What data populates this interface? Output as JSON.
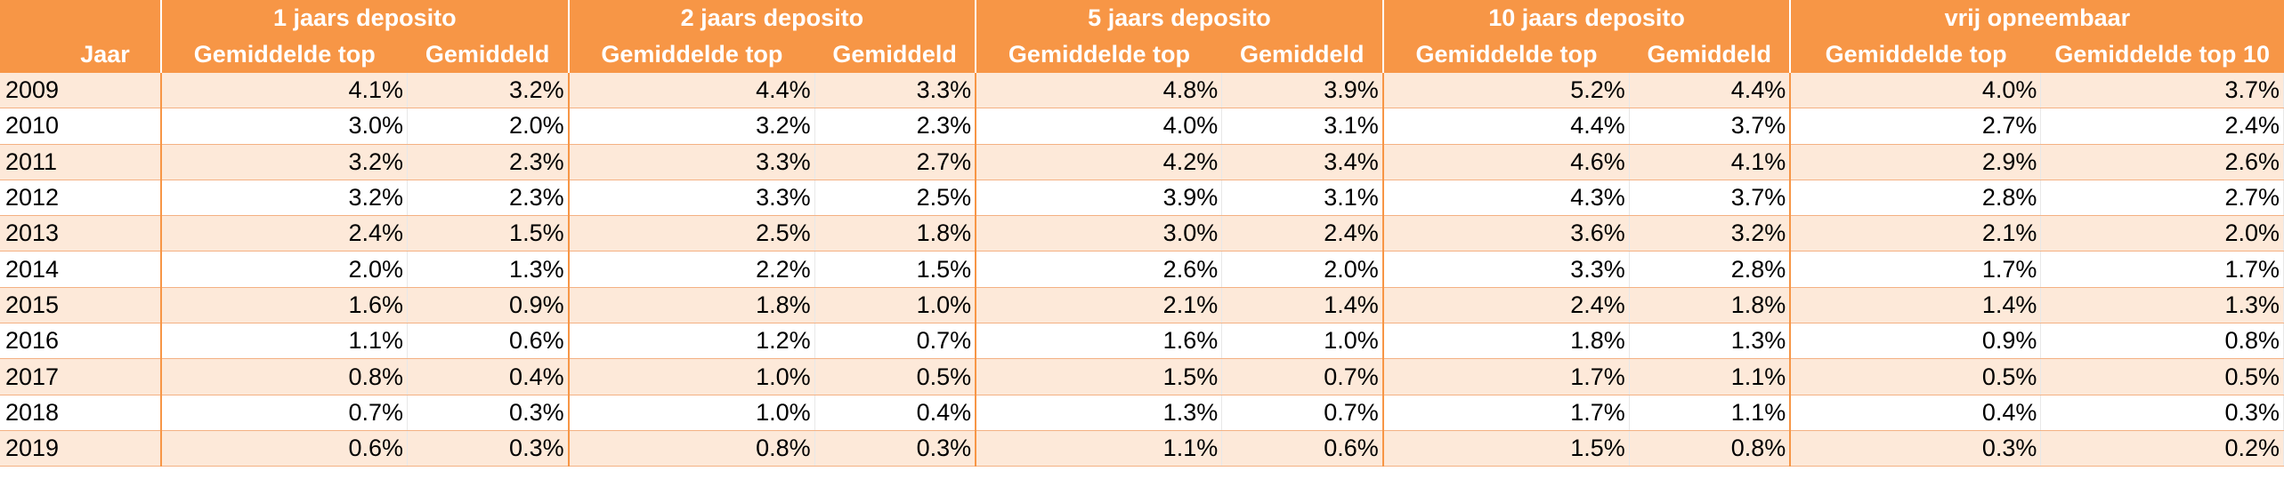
{
  "chart_data": {
    "type": "table",
    "header": {
      "year": "Jaar",
      "groups": [
        "1 jaars deposito",
        "2 jaars deposito",
        "5 jaars deposito",
        "10 jaars deposito",
        "vrij opneembaar"
      ],
      "subheaders": [
        [
          "Gemiddelde top",
          "Gemiddeld"
        ],
        [
          "Gemiddelde top",
          "Gemiddeld"
        ],
        [
          "Gemiddelde top",
          "Gemiddeld"
        ],
        [
          "Gemiddelde top",
          "Gemiddeld"
        ],
        [
          "Gemiddelde top",
          "Gemiddelde top 10"
        ]
      ]
    },
    "rows": [
      [
        "2009",
        "4.1%",
        "3.2%",
        "4.4%",
        "3.3%",
        "4.8%",
        "3.9%",
        "5.2%",
        "4.4%",
        "4.0%",
        "3.7%"
      ],
      [
        "2010",
        "3.0%",
        "2.0%",
        "3.2%",
        "2.3%",
        "4.0%",
        "3.1%",
        "4.4%",
        "3.7%",
        "2.7%",
        "2.4%"
      ],
      [
        "2011",
        "3.2%",
        "2.3%",
        "3.3%",
        "2.7%",
        "4.2%",
        "3.4%",
        "4.6%",
        "4.1%",
        "2.9%",
        "2.6%"
      ],
      [
        "2012",
        "3.2%",
        "2.3%",
        "3.3%",
        "2.5%",
        "3.9%",
        "3.1%",
        "4.3%",
        "3.7%",
        "2.8%",
        "2.7%"
      ],
      [
        "2013",
        "2.4%",
        "1.5%",
        "2.5%",
        "1.8%",
        "3.0%",
        "2.4%",
        "3.6%",
        "3.2%",
        "2.1%",
        "2.0%"
      ],
      [
        "2014",
        "2.0%",
        "1.3%",
        "2.2%",
        "1.5%",
        "2.6%",
        "2.0%",
        "3.3%",
        "2.8%",
        "1.7%",
        "1.7%"
      ],
      [
        "2015",
        "1.6%",
        "0.9%",
        "1.8%",
        "1.0%",
        "2.1%",
        "1.4%",
        "2.4%",
        "1.8%",
        "1.4%",
        "1.3%"
      ],
      [
        "2016",
        "1.1%",
        "0.6%",
        "1.2%",
        "0.7%",
        "1.6%",
        "1.0%",
        "1.8%",
        "1.3%",
        "0.9%",
        "0.8%"
      ],
      [
        "2017",
        "0.8%",
        "0.4%",
        "1.0%",
        "0.5%",
        "1.5%",
        "0.7%",
        "1.7%",
        "1.1%",
        "0.5%",
        "0.5%"
      ],
      [
        "2018",
        "0.7%",
        "0.3%",
        "1.0%",
        "0.4%",
        "1.3%",
        "0.7%",
        "1.7%",
        "1.1%",
        "0.4%",
        "0.3%"
      ],
      [
        "2019",
        "0.6%",
        "0.3%",
        "0.8%",
        "0.3%",
        "1.1%",
        "0.6%",
        "1.5%",
        "0.8%",
        "0.3%",
        "0.2%"
      ]
    ]
  },
  "colors": {
    "header_bg": "#f79646",
    "header_text": "#ffffff",
    "band_row": "#fde9d9",
    "plain_row": "#ffffff"
  }
}
